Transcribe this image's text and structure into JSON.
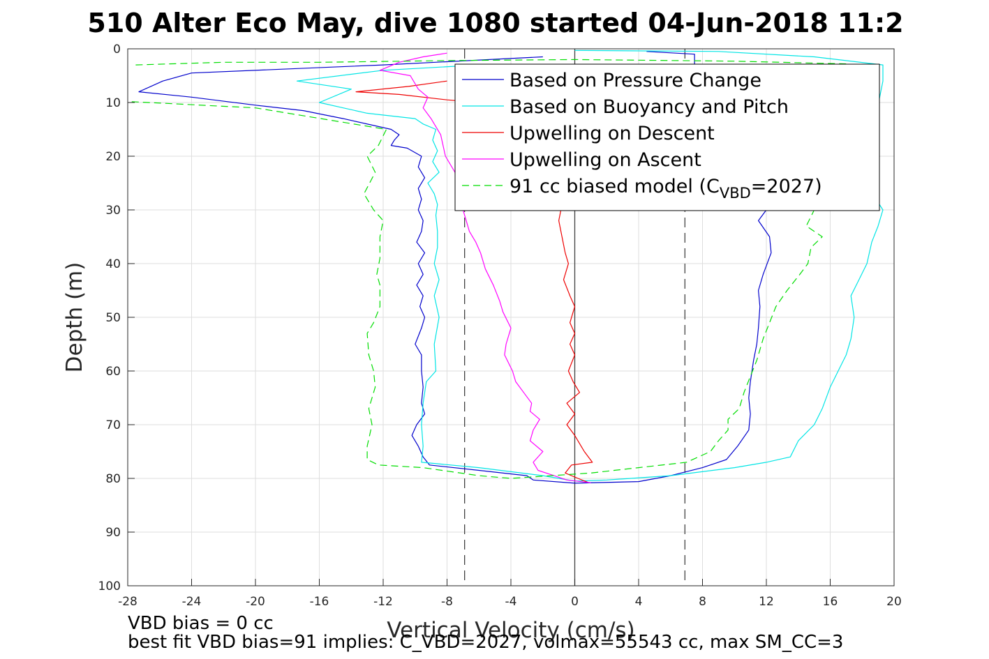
{
  "chart_data": {
    "type": "line",
    "title": "510 Alter Eco May, dive 1080 started 04-Jun-2018 11:2",
    "xlabel": "Vertical Velocity (cm/s)",
    "ylabel": "Depth (m)",
    "xlim": [
      -28,
      20
    ],
    "ylim": [
      0,
      100
    ],
    "y_reversed": true,
    "grid": true,
    "legend_position": "top-right",
    "xticks": [
      -28,
      -24,
      -20,
      -16,
      -12,
      -8,
      -4,
      0,
      4,
      8,
      12,
      16,
      20
    ],
    "yticks": [
      0,
      10,
      20,
      30,
      40,
      50,
      60,
      70,
      80,
      90,
      100
    ],
    "reference_lines": [
      {
        "x": -6.9,
        "style": "dashed",
        "color": "#404040"
      },
      {
        "x": 0,
        "style": "solid",
        "color": "#404040"
      },
      {
        "x": 6.9,
        "style": "dashed",
        "color": "#404040"
      }
    ],
    "series": [
      {
        "name": "Based on Pressure Change",
        "color": "#0000cc",
        "style": "solid",
        "points": [
          [
            -2,
            1.5
          ],
          [
            -12,
            3
          ],
          [
            -24,
            4.5
          ],
          [
            -25.8,
            6
          ],
          [
            -27.3,
            8
          ],
          [
            -24,
            9
          ],
          [
            -20,
            10.5
          ],
          [
            -17,
            11.5
          ],
          [
            -14.5,
            13
          ],
          [
            -11.5,
            15
          ],
          [
            -11,
            16
          ],
          [
            -11.3,
            17
          ],
          [
            -11.5,
            18
          ],
          [
            -10.5,
            18.5
          ],
          [
            -9.6,
            20
          ],
          [
            -9.8,
            22
          ],
          [
            -9.4,
            24
          ],
          [
            -9.8,
            26
          ],
          [
            -9.6,
            28
          ],
          [
            -9.8,
            30
          ],
          [
            -9.5,
            32
          ],
          [
            -9.6,
            34
          ],
          [
            -9.9,
            36
          ],
          [
            -9.4,
            38
          ],
          [
            -9.8,
            40
          ],
          [
            -9.5,
            42
          ],
          [
            -9.9,
            44
          ],
          [
            -9.5,
            46
          ],
          [
            -9.7,
            48
          ],
          [
            -9.4,
            50
          ],
          [
            -9.6,
            52
          ],
          [
            -10,
            55
          ],
          [
            -9.6,
            57
          ],
          [
            -9.6,
            60
          ],
          [
            -9.5,
            63
          ],
          [
            -9.6,
            66
          ],
          [
            -9.4,
            68
          ],
          [
            -9.9,
            70
          ],
          [
            -10.2,
            72
          ],
          [
            -9.8,
            74
          ],
          [
            -9.5,
            76
          ],
          [
            -9.1,
            77.5
          ],
          [
            -6,
            78.5
          ],
          [
            -3,
            79.5
          ],
          [
            -2.6,
            80.3
          ],
          [
            0,
            80.9
          ],
          [
            4,
            80.6
          ],
          [
            6,
            79.5
          ],
          [
            8,
            78
          ],
          [
            9.5,
            76.5
          ],
          [
            10.2,
            74
          ],
          [
            10.9,
            71
          ],
          [
            11,
            68
          ],
          [
            10.9,
            65
          ],
          [
            11,
            62
          ],
          [
            11.2,
            58
          ],
          [
            11.4,
            55
          ],
          [
            11.5,
            52
          ],
          [
            11.6,
            48
          ],
          [
            11.5,
            45
          ],
          [
            11.8,
            42
          ],
          [
            12.3,
            38
          ],
          [
            12.2,
            35
          ],
          [
            11.5,
            32
          ],
          [
            12,
            30
          ],
          [
            9,
            25
          ],
          [
            10,
            18
          ],
          [
            10.5,
            12
          ],
          [
            7.5,
            6
          ],
          [
            7.5,
            1
          ],
          [
            4.5,
            0.5
          ]
        ]
      },
      {
        "name": "Based on Buoyancy and Pitch",
        "color": "#00e5e5",
        "style": "solid",
        "points": [
          [
            -6,
            3
          ],
          [
            -12,
            4
          ],
          [
            -17.4,
            6
          ],
          [
            -14,
            7.5
          ],
          [
            -16,
            10
          ],
          [
            -13,
            12
          ],
          [
            -10,
            13
          ],
          [
            -9.5,
            14
          ],
          [
            -8.7,
            15
          ],
          [
            -8.9,
            17
          ],
          [
            -8.6,
            19
          ],
          [
            -8.9,
            21
          ],
          [
            -8.5,
            23
          ],
          [
            -9.2,
            25
          ],
          [
            -8.8,
            27
          ],
          [
            -8.6,
            29
          ],
          [
            -8.7,
            31
          ],
          [
            -8.6,
            34
          ],
          [
            -8.6,
            37
          ],
          [
            -8.8,
            40
          ],
          [
            -8.5,
            43
          ],
          [
            -8.8,
            46
          ],
          [
            -8.5,
            50
          ],
          [
            -8.8,
            55
          ],
          [
            -8.7,
            60
          ],
          [
            -9.3,
            62
          ],
          [
            -9.5,
            66
          ],
          [
            -9.6,
            70
          ],
          [
            -9.5,
            74
          ],
          [
            -9.6,
            77
          ],
          [
            -6,
            78
          ],
          [
            -2,
            79.5
          ],
          [
            0,
            80.5
          ],
          [
            2,
            80.3
          ],
          [
            6,
            79.5
          ],
          [
            10,
            78
          ],
          [
            12,
            77
          ],
          [
            13.5,
            76
          ],
          [
            14,
            73
          ],
          [
            15,
            70
          ],
          [
            15.5,
            67
          ],
          [
            16,
            63
          ],
          [
            16.5,
            60
          ],
          [
            17,
            57
          ],
          [
            17.3,
            54
          ],
          [
            17.5,
            50
          ],
          [
            17.3,
            46
          ],
          [
            17.8,
            43
          ],
          [
            18.3,
            40
          ],
          [
            18.6,
            36
          ],
          [
            19,
            33
          ],
          [
            19.3,
            30
          ],
          [
            18,
            24
          ],
          [
            18.5,
            18
          ],
          [
            19,
            10.5
          ],
          [
            19.3,
            6
          ],
          [
            19.3,
            3
          ],
          [
            15,
            1.5
          ],
          [
            9,
            0.5
          ],
          [
            0,
            0.3
          ]
        ]
      },
      {
        "name": "Upwelling on Descent",
        "color": "#ee0000",
        "style": "solid",
        "points": [
          [
            -8,
            6
          ],
          [
            -10.4,
            7
          ],
          [
            -13.7,
            8
          ],
          [
            -11,
            8.5
          ],
          [
            -8,
            9.5
          ],
          [
            -6,
            10
          ],
          [
            -4.5,
            12
          ],
          [
            -3,
            15
          ],
          [
            -2.5,
            18
          ],
          [
            -1.5,
            22
          ],
          [
            -1.2,
            26
          ],
          [
            -0.8,
            29
          ],
          [
            -1,
            32
          ],
          [
            -0.8,
            35
          ],
          [
            -0.6,
            38
          ],
          [
            -0.4,
            40
          ],
          [
            -0.7,
            43
          ],
          [
            -0.3,
            46
          ],
          [
            0,
            48
          ],
          [
            -0.3,
            51
          ],
          [
            0,
            53
          ],
          [
            -0.3,
            55
          ],
          [
            0,
            57
          ],
          [
            -0.4,
            60
          ],
          [
            -0.1,
            62
          ],
          [
            0.3,
            64
          ],
          [
            -0.5,
            66
          ],
          [
            0,
            68
          ],
          [
            -0.5,
            70
          ],
          [
            0,
            72
          ],
          [
            0.4,
            74
          ],
          [
            0.6,
            75
          ],
          [
            1.1,
            77
          ],
          [
            -0.2,
            77.5
          ],
          [
            -0.6,
            79
          ],
          [
            0.2,
            80
          ],
          [
            0.8,
            80.7
          ]
        ]
      },
      {
        "name": "Upwelling on Ascent",
        "color": "#ff00ff",
        "style": "solid",
        "points": [
          [
            -8,
            0.8
          ],
          [
            -9.5,
            1.5
          ],
          [
            -11,
            2.5
          ],
          [
            -12.2,
            4
          ],
          [
            -10.3,
            5
          ],
          [
            -9.8,
            7.5
          ],
          [
            -9.2,
            9
          ],
          [
            -9.5,
            11
          ],
          [
            -9,
            13
          ],
          [
            -8.4,
            16
          ],
          [
            -8.1,
            20
          ],
          [
            -7.5,
            23
          ],
          [
            -7.4,
            26
          ],
          [
            -7.1,
            29
          ],
          [
            -6.8,
            32
          ],
          [
            -6.6,
            34
          ],
          [
            -6.2,
            36
          ],
          [
            -5.9,
            38
          ],
          [
            -5.6,
            41
          ],
          [
            -5.1,
            44
          ],
          [
            -4.7,
            47
          ],
          [
            -4.5,
            49
          ],
          [
            -4,
            52
          ],
          [
            -4.3,
            55
          ],
          [
            -4.4,
            57
          ],
          [
            -3.9,
            60
          ],
          [
            -3.7,
            62
          ],
          [
            -3.2,
            64
          ],
          [
            -2.7,
            66
          ],
          [
            -2.8,
            67.5
          ],
          [
            -2.2,
            69
          ],
          [
            -2.6,
            71
          ],
          [
            -2.8,
            73
          ],
          [
            -2,
            75
          ],
          [
            -2.6,
            77
          ],
          [
            -2.3,
            78.5
          ],
          [
            -1.3,
            79.5
          ],
          [
            -0.5,
            80.3
          ],
          [
            1,
            80.8
          ]
        ]
      },
      {
        "name": "91 cc biased model (C",
        "name_sub": "VBD",
        "name_suffix": "=2027)",
        "color": "#00dd00",
        "style": "dashed",
        "points": [
          [
            -27.5,
            3
          ],
          [
            -22,
            2.5
          ],
          [
            -16,
            2.5
          ],
          [
            -8,
            2.2
          ],
          [
            0,
            2
          ],
          [
            10,
            2.3
          ],
          [
            17,
            2.8
          ],
          [
            19,
            4
          ],
          [
            18,
            7.5
          ],
          [
            16,
            10
          ],
          [
            13,
            12
          ],
          [
            10,
            18
          ],
          [
            9.2,
            22
          ],
          [
            11.5,
            28
          ],
          [
            15,
            30
          ],
          [
            14.5,
            33
          ],
          [
            15.5,
            35
          ],
          [
            14.8,
            37
          ],
          [
            14.6,
            40
          ],
          [
            14.1,
            42
          ],
          [
            13.3,
            45
          ],
          [
            12.6,
            48
          ],
          [
            12.2,
            51
          ],
          [
            11.8,
            54
          ],
          [
            11.4,
            58
          ],
          [
            11,
            61
          ],
          [
            10.6,
            64
          ],
          [
            10.3,
            67
          ],
          [
            9.6,
            69
          ],
          [
            9.6,
            71
          ],
          [
            9,
            73
          ],
          [
            8.5,
            75
          ],
          [
            7,
            77
          ],
          [
            4,
            78
          ],
          [
            1,
            79
          ],
          [
            -4,
            80
          ],
          [
            -6,
            79.5
          ],
          [
            -9.5,
            78
          ],
          [
            -12.3,
            77.5
          ],
          [
            -13,
            76.5
          ],
          [
            -13,
            74
          ],
          [
            -12.7,
            70
          ],
          [
            -12.9,
            67
          ],
          [
            -12.5,
            63
          ],
          [
            -12.6,
            60
          ],
          [
            -12.9,
            57
          ],
          [
            -13,
            53
          ],
          [
            -12.6,
            51
          ],
          [
            -12.2,
            48
          ],
          [
            -12.2,
            44
          ],
          [
            -12.4,
            42
          ],
          [
            -12.2,
            39
          ],
          [
            -12.2,
            35
          ],
          [
            -12,
            32
          ],
          [
            -12.6,
            30
          ],
          [
            -13.2,
            27
          ],
          [
            -12.5,
            23
          ],
          [
            -13,
            20
          ],
          [
            -12.3,
            18
          ],
          [
            -11.8,
            15
          ],
          [
            -20,
            11
          ],
          [
            -28,
            9.8
          ]
        ]
      }
    ]
  },
  "footer": {
    "line1": "VBD bias = 0 cc",
    "line2": "best fit VBD bias=91 implies: C_VBD=2027, volmax=55543 cc, max SM_CC=3"
  }
}
